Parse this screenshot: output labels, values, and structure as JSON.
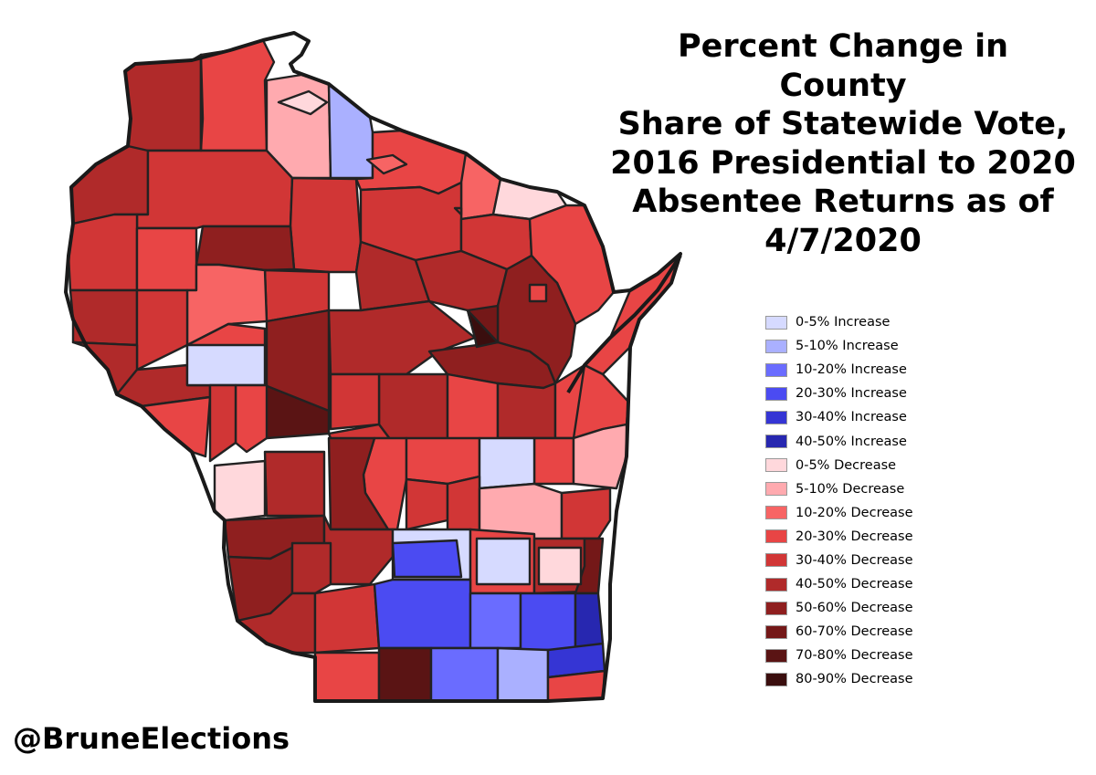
{
  "title_lines": [
    "Percent Change in County",
    "Share of Statewide Vote,",
    "2016 Presidential to 2020",
    "Absentee Returns as of",
    "4/7/2020"
  ],
  "handle": "@BruneElections",
  "legend": [
    {
      "label": "0-5% Increase",
      "color": "#d6daff"
    },
    {
      "label": "5-10% Increase",
      "color": "#aab0ff"
    },
    {
      "label": "10-20% Increase",
      "color": "#6a6cff"
    },
    {
      "label": "20-30% Increase",
      "color": "#4b4bf2"
    },
    {
      "label": "30-40% Increase",
      "color": "#3535d4"
    },
    {
      "label": "40-50% Increase",
      "color": "#2727b0"
    },
    {
      "label": "0-5% Decrease",
      "color": "#ffd8dc"
    },
    {
      "label": "5-10% Decrease",
      "color": "#ffaaaf"
    },
    {
      "label": "10-20% Decrease",
      "color": "#f76464"
    },
    {
      "label": "20-30% Decrease",
      "color": "#e84545"
    },
    {
      "label": "30-40% Decrease",
      "color": "#d13636"
    },
    {
      "label": "40-50% Decrease",
      "color": "#b02a2a"
    },
    {
      "label": "50-60% Decrease",
      "color": "#8f1f1f"
    },
    {
      "label": "60-70% Decrease",
      "color": "#741818"
    },
    {
      "label": "70-80% Decrease",
      "color": "#5a1414"
    },
    {
      "label": "80-90% Decrease",
      "color": "#3a0e0e"
    }
  ],
  "county_classes": [
    11,
    9,
    7,
    11,
    10,
    1,
    9,
    8,
    10,
    10,
    6,
    10,
    12,
    10,
    9,
    9,
    11,
    10,
    8,
    11,
    12,
    13,
    11,
    10,
    12,
    11,
    12,
    9,
    9,
    9,
    11,
    11,
    15,
    11,
    9,
    11,
    0,
    14,
    10,
    9,
    9,
    9,
    10,
    10,
    9,
    9,
    9,
    7,
    12,
    11,
    0,
    10,
    10,
    6,
    12,
    7,
    10,
    11,
    0,
    9,
    11,
    13,
    12,
    11,
    11,
    10,
    3,
    2,
    3,
    5,
    9,
    14,
    2,
    1,
    4,
    9,
    2,
    6,
    8,
    10,
    9,
    3,
    0,
    6
  ]
}
